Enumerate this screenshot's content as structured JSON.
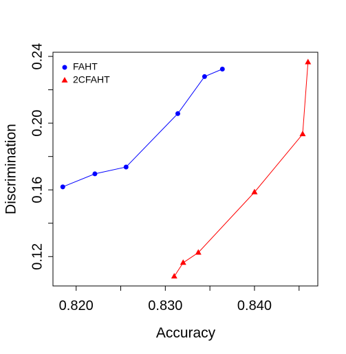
{
  "chart_data": {
    "type": "line",
    "x_label": "Accuracy",
    "y_label": "Discrimination",
    "xlim": [
      0.8174,
      0.8471
    ],
    "ylim": [
      0.1024,
      0.2425
    ],
    "xticks": [
      {
        "value": 0.82,
        "label": "0.820"
      },
      {
        "value": 0.825,
        "label": null
      },
      {
        "value": 0.83,
        "label": "0.830"
      },
      {
        "value": 0.835,
        "label": null
      },
      {
        "value": 0.84,
        "label": "0.840"
      },
      {
        "value": 0.845,
        "label": null
      }
    ],
    "yticks": [
      0.12,
      {
        "value": 0.14,
        "label": null
      },
      0.16,
      {
        "value": 0.18,
        "label": null
      },
      {
        "value": 0.2,
        "label": "0.20"
      },
      {
        "value": 0.22,
        "label": null
      },
      0.24
    ],
    "legend": "top-left",
    "series": [
      {
        "name": "FAHT",
        "color": "#0000ff",
        "marker": "circle",
        "x": [
          0.8185,
          0.8221,
          0.8256,
          0.8314,
          0.8344,
          0.8364
        ],
        "values": [
          0.1618,
          0.1696,
          0.1737,
          0.2057,
          0.2279,
          0.2324
        ]
      },
      {
        "name": "2CFAHT",
        "color": "#ff0000",
        "marker": "triangle",
        "x": [
          0.831,
          0.832,
          0.8337,
          0.84,
          0.8454,
          0.846
        ],
        "values": [
          0.1081,
          0.1163,
          0.1224,
          0.1586,
          0.1934,
          0.2365
        ]
      }
    ]
  }
}
